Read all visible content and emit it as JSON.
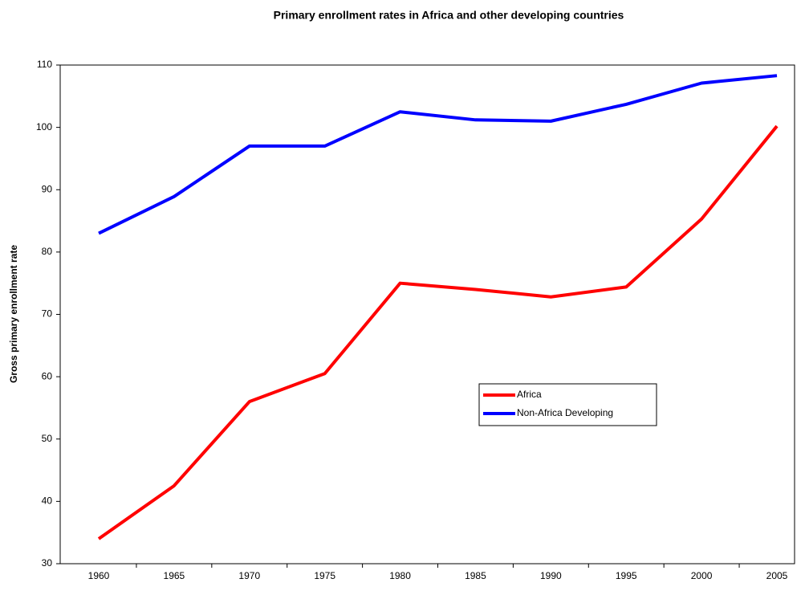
{
  "chart_data": {
    "type": "line",
    "title": "Primary enrollment rates in Africa and other developing countries",
    "y_label": "Gross primary enrollment rate",
    "categories": [
      "1960",
      "1965",
      "1970",
      "1975",
      "1980",
      "1985",
      "1990",
      "1995",
      "2000",
      "2005"
    ],
    "series": [
      {
        "name": "Africa",
        "color": "#ff0000",
        "values": [
          34,
          42.5,
          56,
          60.5,
          75,
          74,
          72.8,
          74.4,
          85.3,
          100.2
        ]
      },
      {
        "name": "Non-Africa Developing",
        "color": "#0000ff",
        "values": [
          83,
          88.9,
          97,
          97,
          102.5,
          101.2,
          101,
          103.7,
          107.1,
          108.3
        ]
      }
    ],
    "ylim": [
      30,
      110
    ],
    "yticks": [
      30,
      40,
      50,
      60,
      70,
      80,
      90,
      100,
      110
    ],
    "grid": false
  }
}
